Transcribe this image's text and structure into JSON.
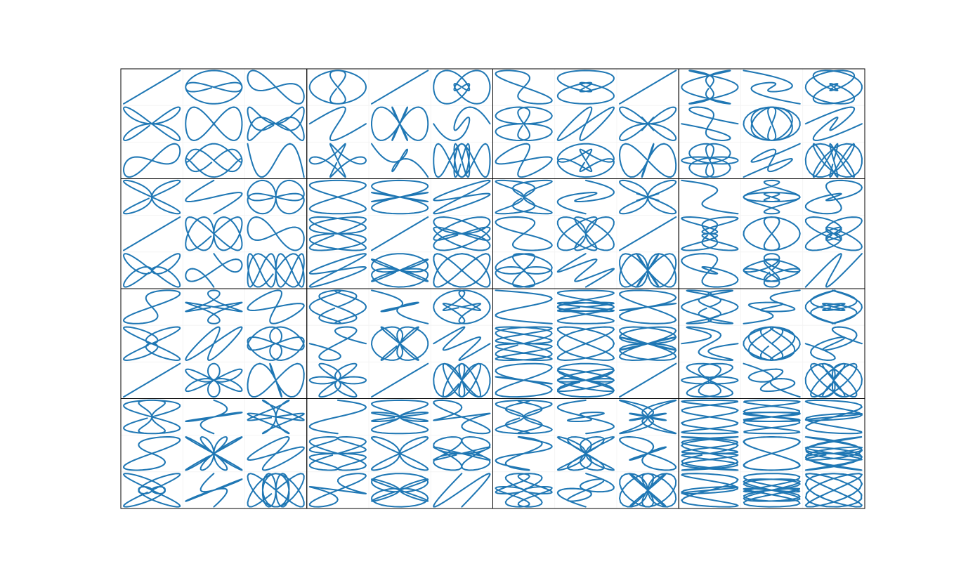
{
  "chart_data": {
    "type": "lissajous-grid",
    "color": "#1f77b4",
    "panels": [
      [
        1,
        1,
        1,
        1
      ],
      [
        1,
        1,
        1,
        2
      ],
      [
        1,
        1,
        1,
        3
      ],
      [
        1,
        1,
        2,
        1
      ],
      [
        1,
        1,
        2,
        2
      ],
      [
        1,
        1,
        2,
        3
      ],
      [
        1,
        1,
        3,
        1
      ],
      [
        1,
        1,
        3,
        2
      ],
      [
        1,
        1,
        3,
        3
      ],
      [
        1,
        2,
        1,
        1
      ],
      [
        1,
        2,
        1,
        2
      ],
      [
        1,
        2,
        1,
        3
      ],
      [
        1,
        2,
        2,
        1
      ],
      [
        1,
        2,
        2,
        2
      ],
      [
        1,
        2,
        2,
        3
      ],
      [
        1,
        2,
        3,
        1
      ],
      [
        1,
        2,
        3,
        2
      ],
      [
        1,
        2,
        3,
        3
      ],
      [
        1,
        3,
        1,
        1
      ],
      [
        1,
        3,
        1,
        2
      ],
      [
        1,
        3,
        1,
        3
      ],
      [
        1,
        3,
        2,
        1
      ],
      [
        1,
        3,
        2,
        2
      ],
      [
        1,
        3,
        2,
        3
      ],
      [
        1,
        3,
        3,
        1
      ],
      [
        1,
        3,
        3,
        2
      ],
      [
        1,
        3,
        3,
        3
      ],
      [
        1,
        4,
        1,
        1
      ],
      [
        1,
        4,
        1,
        2
      ],
      [
        1,
        4,
        1,
        3
      ],
      [
        1,
        4,
        2,
        1
      ],
      [
        1,
        4,
        2,
        2
      ],
      [
        1,
        4,
        2,
        3
      ],
      [
        1,
        4,
        3,
        1
      ],
      [
        1,
        4,
        3,
        2
      ],
      [
        1,
        4,
        3,
        3
      ],
      [
        2,
        1,
        1,
        1
      ],
      [
        2,
        1,
        1,
        2
      ],
      [
        2,
        1,
        1,
        3
      ],
      [
        2,
        1,
        2,
        1
      ],
      [
        2,
        1,
        2,
        2
      ],
      [
        2,
        1,
        2,
        3
      ],
      [
        2,
        1,
        3,
        1
      ],
      [
        2,
        1,
        3,
        2
      ],
      [
        2,
        1,
        3,
        3
      ],
      [
        2,
        2,
        1,
        1
      ],
      [
        2,
        2,
        1,
        2
      ],
      [
        2,
        2,
        1,
        3
      ],
      [
        2,
        2,
        2,
        1
      ],
      [
        2,
        2,
        2,
        2
      ],
      [
        2,
        2,
        2,
        3
      ],
      [
        2,
        2,
        3,
        1
      ],
      [
        2,
        2,
        3,
        2
      ],
      [
        2,
        2,
        3,
        3
      ],
      [
        2,
        3,
        1,
        1
      ],
      [
        2,
        3,
        1,
        2
      ],
      [
        2,
        3,
        1,
        3
      ],
      [
        2,
        3,
        2,
        1
      ],
      [
        2,
        3,
        2,
        2
      ],
      [
        2,
        3,
        2,
        3
      ],
      [
        2,
        3,
        3,
        1
      ],
      [
        2,
        3,
        3,
        2
      ],
      [
        2,
        3,
        3,
        3
      ],
      [
        2,
        4,
        1,
        1
      ],
      [
        2,
        4,
        1,
        2
      ],
      [
        2,
        4,
        1,
        3
      ],
      [
        2,
        4,
        2,
        1
      ],
      [
        2,
        4,
        2,
        2
      ],
      [
        2,
        4,
        2,
        3
      ],
      [
        2,
        4,
        3,
        1
      ],
      [
        2,
        4,
        3,
        2
      ],
      [
        2,
        4,
        3,
        3
      ],
      [
        3,
        1,
        1,
        1
      ],
      [
        3,
        1,
        1,
        2
      ],
      [
        3,
        1,
        1,
        3
      ],
      [
        3,
        1,
        2,
        1
      ],
      [
        3,
        1,
        2,
        2
      ],
      [
        3,
        1,
        2,
        3
      ],
      [
        3,
        1,
        3,
        1
      ],
      [
        3,
        1,
        3,
        2
      ],
      [
        3,
        1,
        3,
        3
      ],
      [
        3,
        2,
        1,
        1
      ],
      [
        3,
        2,
        1,
        2
      ],
      [
        3,
        2,
        1,
        3
      ],
      [
        3,
        2,
        2,
        1
      ],
      [
        3,
        2,
        2,
        2
      ],
      [
        3,
        2,
        2,
        3
      ],
      [
        3,
        2,
        3,
        1
      ],
      [
        3,
        2,
        3,
        2
      ],
      [
        3,
        2,
        3,
        3
      ],
      [
        3,
        3,
        1,
        1
      ],
      [
        3,
        3,
        1,
        2
      ],
      [
        3,
        3,
        1,
        3
      ],
      [
        3,
        3,
        2,
        1
      ],
      [
        3,
        3,
        2,
        2
      ],
      [
        3,
        3,
        2,
        3
      ],
      [
        3,
        3,
        3,
        1
      ],
      [
        3,
        3,
        3,
        2
      ],
      [
        3,
        3,
        3,
        3
      ],
      [
        3,
        4,
        1,
        1
      ],
      [
        3,
        4,
        1,
        2
      ],
      [
        3,
        4,
        1,
        3
      ],
      [
        3,
        4,
        2,
        1
      ],
      [
        3,
        4,
        2,
        2
      ],
      [
        3,
        4,
        2,
        3
      ],
      [
        3,
        4,
        3,
        1
      ],
      [
        3,
        4,
        3,
        2
      ],
      [
        3,
        4,
        3,
        3
      ],
      [
        4,
        1,
        1,
        1
      ],
      [
        4,
        1,
        1,
        2
      ],
      [
        4,
        1,
        1,
        3
      ],
      [
        4,
        1,
        2,
        1
      ],
      [
        4,
        1,
        2,
        2
      ],
      [
        4,
        1,
        2,
        3
      ],
      [
        4,
        1,
        3,
        1
      ],
      [
        4,
        1,
        3,
        2
      ],
      [
        4,
        1,
        3,
        3
      ],
      [
        4,
        2,
        1,
        1
      ],
      [
        4,
        2,
        1,
        2
      ],
      [
        4,
        2,
        1,
        3
      ],
      [
        4,
        2,
        2,
        1
      ],
      [
        4,
        2,
        2,
        2
      ],
      [
        4,
        2,
        2,
        3
      ],
      [
        4,
        2,
        3,
        1
      ],
      [
        4,
        2,
        3,
        2
      ],
      [
        4,
        2,
        3,
        3
      ],
      [
        4,
        3,
        1,
        1
      ],
      [
        4,
        3,
        1,
        2
      ],
      [
        4,
        3,
        1,
        3
      ],
      [
        4,
        3,
        2,
        1
      ],
      [
        4,
        3,
        2,
        2
      ],
      [
        4,
        3,
        2,
        3
      ],
      [
        4,
        3,
        3,
        1
      ],
      [
        4,
        3,
        3,
        2
      ],
      [
        4,
        3,
        3,
        3
      ],
      [
        4,
        4,
        1,
        1
      ],
      [
        4,
        4,
        1,
        2
      ],
      [
        4,
        4,
        1,
        3
      ],
      [
        4,
        4,
        2,
        1
      ],
      [
        4,
        4,
        2,
        2
      ],
      [
        4,
        4,
        2,
        3
      ],
      [
        4,
        4,
        3,
        1
      ],
      [
        4,
        4,
        3,
        2
      ],
      [
        4,
        4,
        3,
        3
      ]
    ]
  }
}
